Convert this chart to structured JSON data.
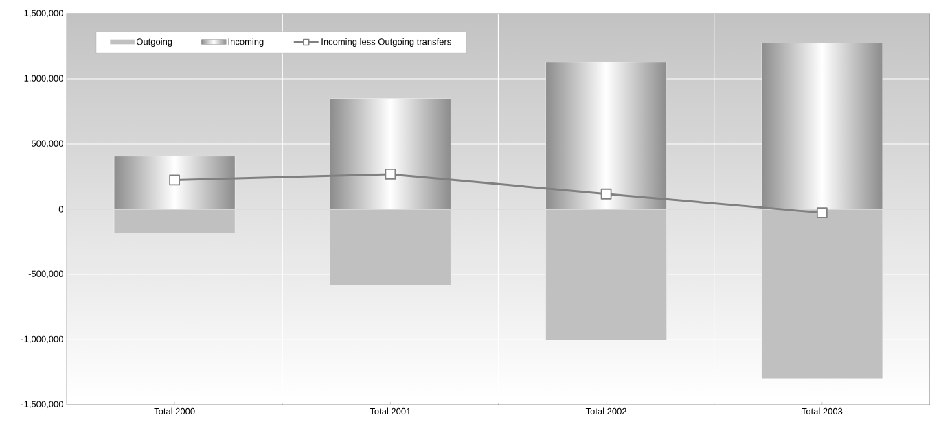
{
  "chart_data": {
    "type": "bar",
    "categories": [
      "Total 2000",
      "Total 2001",
      "Total 2002",
      "Total 2003"
    ],
    "series": [
      {
        "name": "Outgoing",
        "color": "#c0c0c0",
        "values": [
          -182000,
          -582000,
          -1005000,
          -1299000
        ]
      },
      {
        "name": "Incoming",
        "color": "#8c8c8c",
        "values": [
          407000,
          850000,
          1127000,
          1276000
        ]
      },
      {
        "name": "Incoming less Outgoing transfers",
        "type": "line",
        "color": "#808080",
        "marker": "square",
        "values": [
          224000,
          269000,
          117000,
          -27000
        ]
      }
    ],
    "ylim": [
      -1500000,
      1500000
    ],
    "yticks": [
      {
        "value": -1500000,
        "label": "-1,500,000"
      },
      {
        "value": -1000000,
        "label": "-1,000,000"
      },
      {
        "value": -500000,
        "label": "-500,000"
      },
      0,
      {
        "value": 500000,
        "label": "500,000"
      },
      {
        "value": 1000000,
        "label": "1,000,000"
      },
      {
        "value": 1500000,
        "label": "1,500,000"
      }
    ],
    "stacked": true,
    "grid": true,
    "legend": "top left"
  }
}
